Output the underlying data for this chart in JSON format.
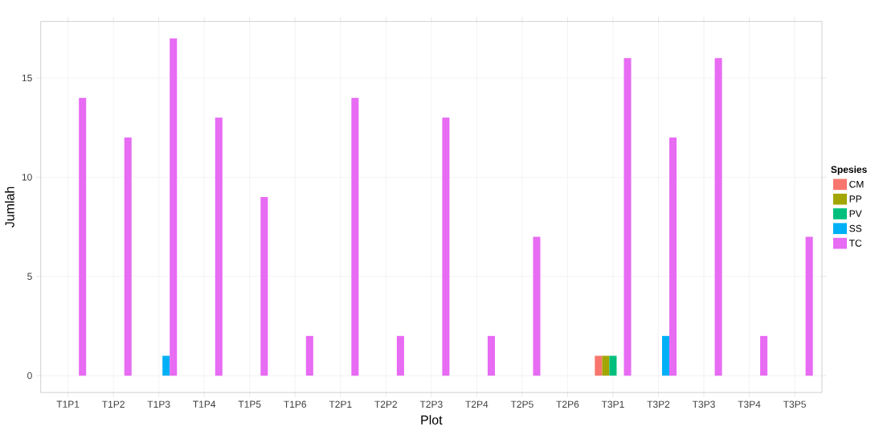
{
  "chart_data": {
    "type": "bar",
    "xlabel": "Plot",
    "ylabel": "Jumlah",
    "legend_title": "Spesies",
    "categories": [
      "T1P1",
      "T1P2",
      "T1P3",
      "T1P4",
      "T1P5",
      "T1P6",
      "T2P1",
      "T2P2",
      "T2P3",
      "T2P4",
      "T2P5",
      "T2P6",
      "T3P1",
      "T3P2",
      "T3P3",
      "T3P4",
      "T3P5"
    ],
    "series": [
      {
        "name": "CM",
        "color": "#f8766d",
        "values": [
          null,
          null,
          null,
          null,
          null,
          null,
          null,
          null,
          null,
          null,
          null,
          null,
          1,
          null,
          null,
          null,
          null
        ]
      },
      {
        "name": "PP",
        "color": "#a3a500",
        "values": [
          null,
          null,
          null,
          null,
          null,
          null,
          null,
          null,
          null,
          null,
          null,
          null,
          1,
          null,
          null,
          null,
          null
        ]
      },
      {
        "name": "PV",
        "color": "#00bf7d",
        "values": [
          null,
          null,
          null,
          null,
          null,
          null,
          null,
          null,
          null,
          null,
          null,
          null,
          1,
          null,
          null,
          null,
          null
        ]
      },
      {
        "name": "SS",
        "color": "#00b0f6",
        "values": [
          null,
          null,
          1,
          null,
          null,
          null,
          null,
          null,
          null,
          null,
          null,
          null,
          null,
          2,
          null,
          null,
          null
        ]
      },
      {
        "name": "TC",
        "color": "#e76bf3",
        "values": [
          14,
          12,
          17,
          13,
          9,
          2,
          14,
          2,
          13,
          2,
          7,
          null,
          16,
          12,
          16,
          2,
          7
        ]
      }
    ],
    "ylim": [
      -0.85,
      17.85
    ],
    "yticks": [
      0,
      5,
      10,
      15
    ],
    "grid": true,
    "legend": "right"
  }
}
